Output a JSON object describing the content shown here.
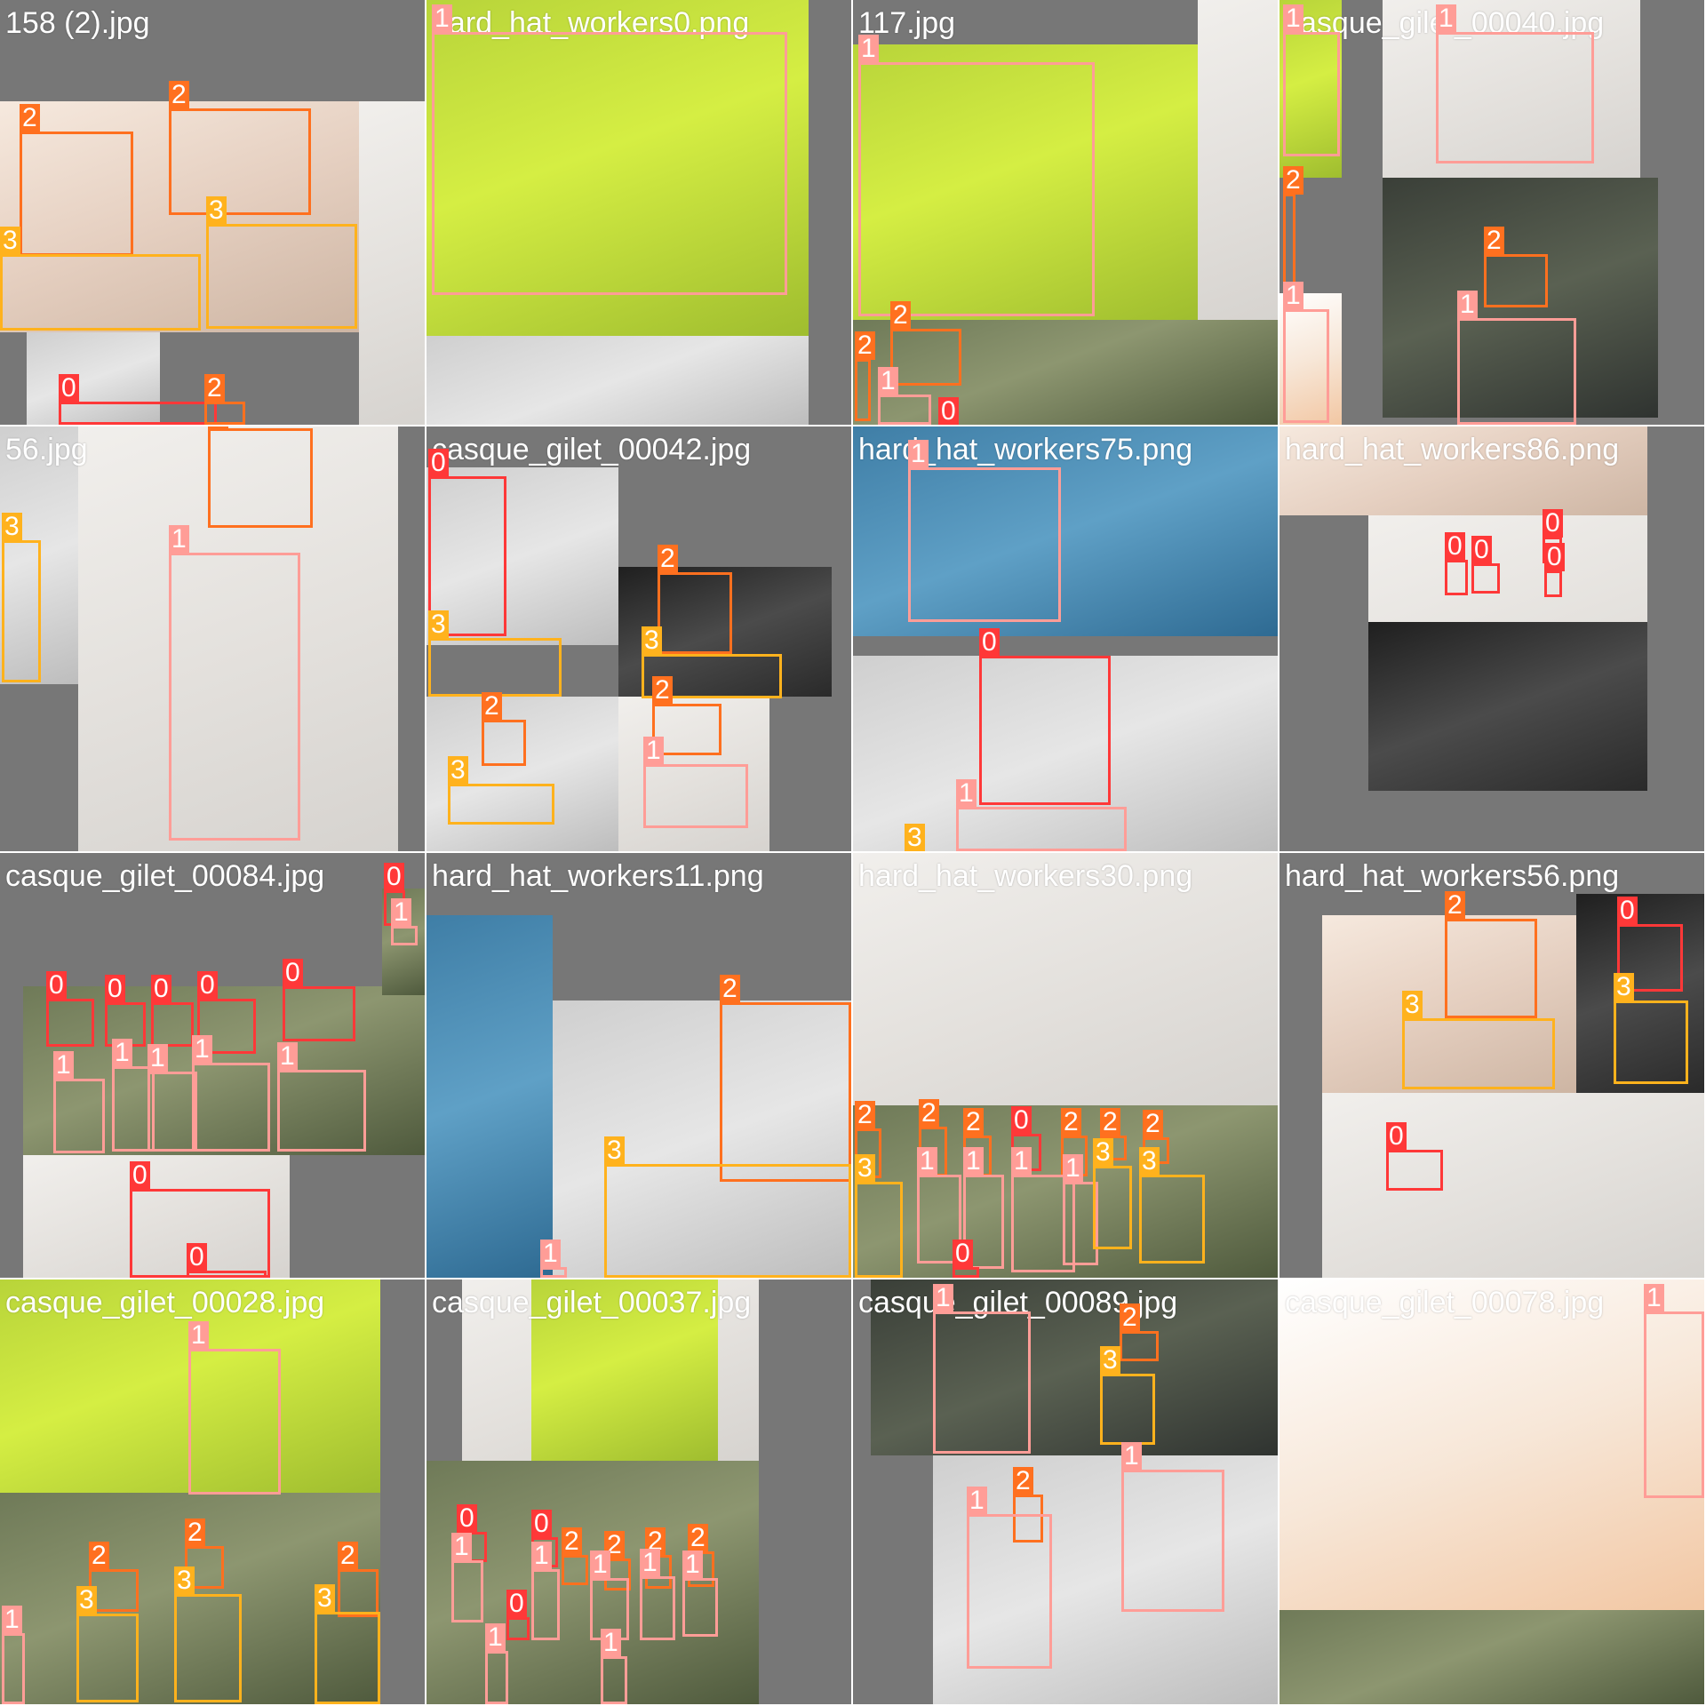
{
  "colors": {
    "class_0": "#ff3838",
    "class_1": "#ff9d97",
    "class_2": "#ff701f",
    "class_3": "#ffb21d",
    "tile_padding": "#777777"
  },
  "tiles": [
    {
      "filename": "158 (2).jpg",
      "labels": [
        "2",
        "2",
        "3",
        "3",
        "0",
        "2"
      ]
    },
    {
      "filename": "hard_hat_workers0.png",
      "labels": [
        "1"
      ]
    },
    {
      "filename": "117.jpg",
      "labels": [
        "1",
        "2",
        "2",
        "1",
        "0"
      ]
    },
    {
      "filename": "casque_gilet_00040.jpg",
      "labels": [
        "1",
        "1",
        "2",
        "1",
        "2",
        "1"
      ]
    },
    {
      "filename": "56.jpg",
      "labels": [
        "2",
        "3",
        "1"
      ]
    },
    {
      "filename": "casque_gilet_00042.jpg",
      "labels": [
        "0",
        "3",
        "2",
        "3",
        "2",
        "3",
        "2",
        "1"
      ]
    },
    {
      "filename": "hard_hat_workers75.png",
      "labels": [
        "1",
        "0",
        "1",
        "3"
      ]
    },
    {
      "filename": "hard_hat_workers86.png",
      "labels": [
        "0",
        "0",
        "0",
        "0"
      ]
    },
    {
      "filename": "casque_gilet_00084.jpg",
      "labels": [
        "0",
        "1",
        "0",
        "0",
        "0",
        "0",
        "0",
        "1",
        "1",
        "1",
        "1",
        "1",
        "0",
        "0"
      ]
    },
    {
      "filename": "hard_hat_workers11.png",
      "labels": [
        "2",
        "3",
        "1"
      ]
    },
    {
      "filename": "hard_hat_workers30.png",
      "labels": [
        "2",
        "3",
        "2",
        "2",
        "0",
        "2",
        "2",
        "2",
        "1",
        "1",
        "1",
        "1",
        "3",
        "3",
        "0"
      ]
    },
    {
      "filename": "hard_hat_workers56.png",
      "labels": [
        "2",
        "0",
        "3",
        "3",
        "0"
      ]
    },
    {
      "filename": "casque_gilet_00028.jpg",
      "labels": [
        "1",
        "2",
        "2",
        "2",
        "3",
        "3",
        "3",
        "1"
      ]
    },
    {
      "filename": "casque_gilet_00037.jpg",
      "labels": [
        "0",
        "0",
        "2",
        "2",
        "2",
        "2",
        "1",
        "1",
        "1",
        "1",
        "1",
        "0",
        "1",
        "1"
      ]
    },
    {
      "filename": "casque_gilet_00089.jpg",
      "labels": [
        "1",
        "2",
        "3",
        "2",
        "1",
        "1"
      ]
    },
    {
      "filename": "casque_gilet_00078.jpg",
      "labels": [
        "1"
      ]
    }
  ]
}
